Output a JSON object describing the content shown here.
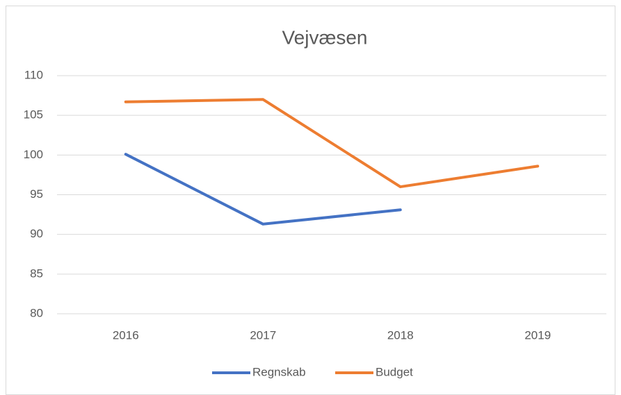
{
  "chart_data": {
    "type": "line",
    "title": "Vejvæsen",
    "categories": [
      "2016",
      "2017",
      "2018",
      "2019"
    ],
    "series": [
      {
        "name": "Regnskab",
        "color": "#4472c4",
        "values": [
          100.1,
          91.3,
          93.1,
          null
        ]
      },
      {
        "name": "Budget",
        "color": "#ed7d31",
        "values": [
          106.7,
          107,
          96,
          98.6
        ]
      }
    ],
    "ylim": [
      80,
      110
    ],
    "yticks": [
      80,
      85,
      90,
      95,
      100,
      105,
      110
    ],
    "grid": true,
    "legend": "bottom"
  }
}
